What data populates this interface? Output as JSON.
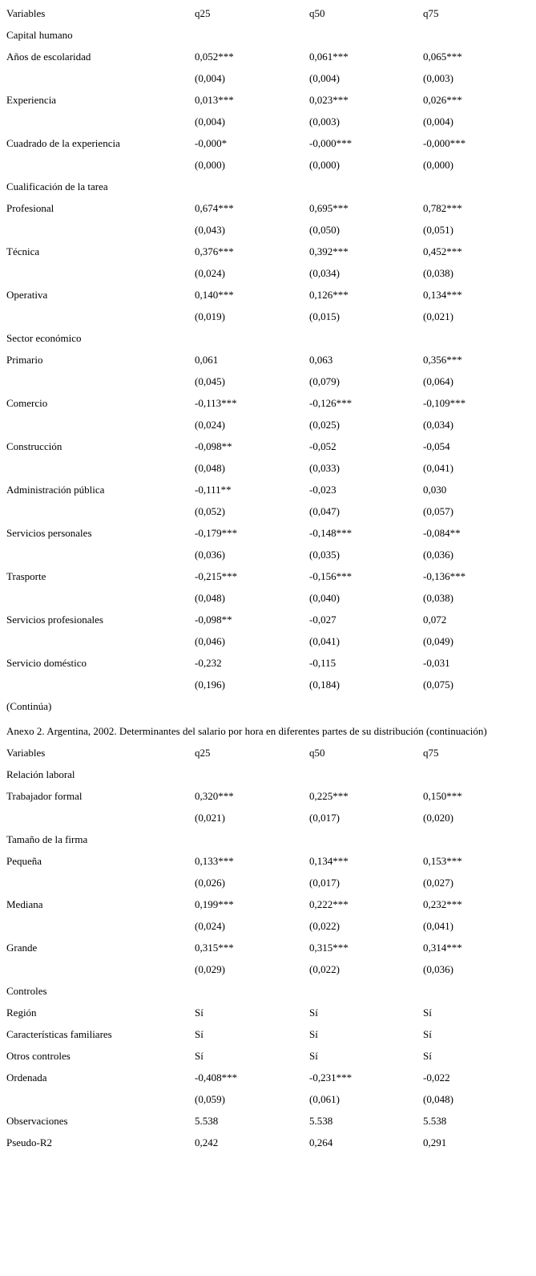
{
  "page": {
    "continua_note": "(Continúa)",
    "title": "Anexo 2. Argentina, 2002. Determinantes del salario por hora en diferentes partes de su distribución (continuación)"
  },
  "columns": {
    "label": "Variables",
    "q25": "q25",
    "q50": "q50",
    "q75": "q75"
  },
  "table1": {
    "rows": [
      {
        "type": "header"
      },
      {
        "type": "section",
        "label": "Capital humano"
      },
      {
        "type": "coef",
        "label": "Años de escolaridad",
        "values": [
          "0,052***",
          "0,061***",
          "0,065***"
        ],
        "se": [
          "(0,004)",
          "(0,004)",
          "(0,003)"
        ]
      },
      {
        "type": "coef",
        "label": "Experiencia",
        "values": [
          "0,013***",
          "0,023***",
          "0,026***"
        ],
        "se": [
          "(0,004)",
          "(0,003)",
          "(0,004)"
        ]
      },
      {
        "type": "coef",
        "label": "Cuadrado de la experiencia",
        "values": [
          "-0,000*",
          "-0,000***",
          "-0,000***"
        ],
        "se": [
          "(0,000)",
          "(0,000)",
          "(0,000)"
        ]
      },
      {
        "type": "section",
        "label": "Cualificación de la tarea"
      },
      {
        "type": "coef",
        "label": "Profesional",
        "values": [
          "0,674***",
          "0,695***",
          "0,782***"
        ],
        "se": [
          "(0,043)",
          "(0,050)",
          "(0,051)"
        ]
      },
      {
        "type": "coef",
        "label": "Técnica",
        "values": [
          "0,376***",
          "0,392***",
          "0,452***"
        ],
        "se": [
          "(0,024)",
          "(0,034)",
          "(0,038)"
        ]
      },
      {
        "type": "coef",
        "label": "Operativa",
        "values": [
          "0,140***",
          "0,126***",
          "0,134***"
        ],
        "se": [
          "(0,019)",
          "(0,015)",
          "(0,021)"
        ]
      },
      {
        "type": "section",
        "label": "Sector económico"
      },
      {
        "type": "coef",
        "label": "Primario",
        "values": [
          "0,061",
          "0,063",
          "0,356***"
        ],
        "se": [
          "(0,045)",
          "(0,079)",
          "(0,064)"
        ]
      },
      {
        "type": "coef",
        "label": "Comercio",
        "values": [
          "-0,113***",
          "-0,126***",
          "-0,109***"
        ],
        "se": [
          "(0,024)",
          "(0,025)",
          "(0,034)"
        ]
      },
      {
        "type": "coef",
        "label": "Construcción",
        "values": [
          "-0,098**",
          "-0,052",
          "-0,054"
        ],
        "se": [
          "(0,048)",
          "(0,033)",
          "(0,041)"
        ]
      },
      {
        "type": "coef",
        "label": "Administración pública",
        "values": [
          "-0,111**",
          "-0,023",
          "0,030"
        ],
        "se": [
          "(0,052)",
          "(0,047)",
          "(0,057)"
        ]
      },
      {
        "type": "coef",
        "label": "Servicios personales",
        "values": [
          "-0,179***",
          "-0,148***",
          "-0,084**"
        ],
        "se": [
          "(0,036)",
          "(0,035)",
          "(0,036)"
        ]
      },
      {
        "type": "coef",
        "label": "Trasporte",
        "values": [
          "-0,215***",
          "-0,156***",
          "-0,136***"
        ],
        "se": [
          "(0,048)",
          "(0,040)",
          "(0,038)"
        ]
      },
      {
        "type": "coef",
        "label": "Servicios profesionales",
        "values": [
          "-0,098**",
          "-0,027",
          "0,072"
        ],
        "se": [
          "(0,046)",
          "(0,041)",
          "(0,049)"
        ]
      },
      {
        "type": "coef",
        "label": "Servicio doméstico",
        "values": [
          "-0,232",
          "-0,115",
          "-0,031"
        ],
        "se": [
          "(0,196)",
          "(0,184)",
          "(0,075)"
        ]
      }
    ]
  },
  "table2": {
    "rows": [
      {
        "type": "header"
      },
      {
        "type": "section",
        "label": "Relación laboral"
      },
      {
        "type": "coef",
        "label": "Trabajador formal",
        "values": [
          "0,320***",
          "0,225***",
          "0,150***"
        ],
        "se": [
          "(0,021)",
          "(0,017)",
          "(0,020)"
        ]
      },
      {
        "type": "section",
        "label": "Tamaño de la firma"
      },
      {
        "type": "coef",
        "label": "Pequeña",
        "values": [
          "0,133***",
          "0,134***",
          "0,153***"
        ],
        "se": [
          "(0,026)",
          "(0,017)",
          "(0,027)"
        ]
      },
      {
        "type": "coef",
        "label": "Mediana",
        "values": [
          "0,199***",
          "0,222***",
          "0,232***"
        ],
        "se": [
          "(0,024)",
          "(0,022)",
          "(0,041)"
        ]
      },
      {
        "type": "coef",
        "label": "Grande",
        "values": [
          "0,315***",
          "0,315***",
          "0,314***"
        ],
        "se": [
          "(0,029)",
          "(0,022)",
          "(0,036)"
        ]
      },
      {
        "type": "section",
        "label": "Controles"
      },
      {
        "type": "value",
        "label": "Región",
        "values": [
          "Sí",
          "Sí",
          "Sí"
        ]
      },
      {
        "type": "value",
        "label": "Características familiares",
        "values": [
          "Sí",
          "Sí",
          "Sí"
        ]
      },
      {
        "type": "value",
        "label": "Otros controles",
        "values": [
          "Sí",
          "Sí",
          "Sí"
        ]
      },
      {
        "type": "coef",
        "label": "Ordenada",
        "values": [
          "-0,408***",
          "-0,231***",
          "-0,022"
        ],
        "se": [
          "(0,059)",
          "(0,061)",
          "(0,048)"
        ]
      },
      {
        "type": "value",
        "label": "Observaciones",
        "values": [
          "5.538",
          "5.538",
          "5.538"
        ]
      },
      {
        "type": "value",
        "label": "Pseudo-R2",
        "values": [
          "0,242",
          "0,264",
          "0,291"
        ]
      }
    ]
  }
}
